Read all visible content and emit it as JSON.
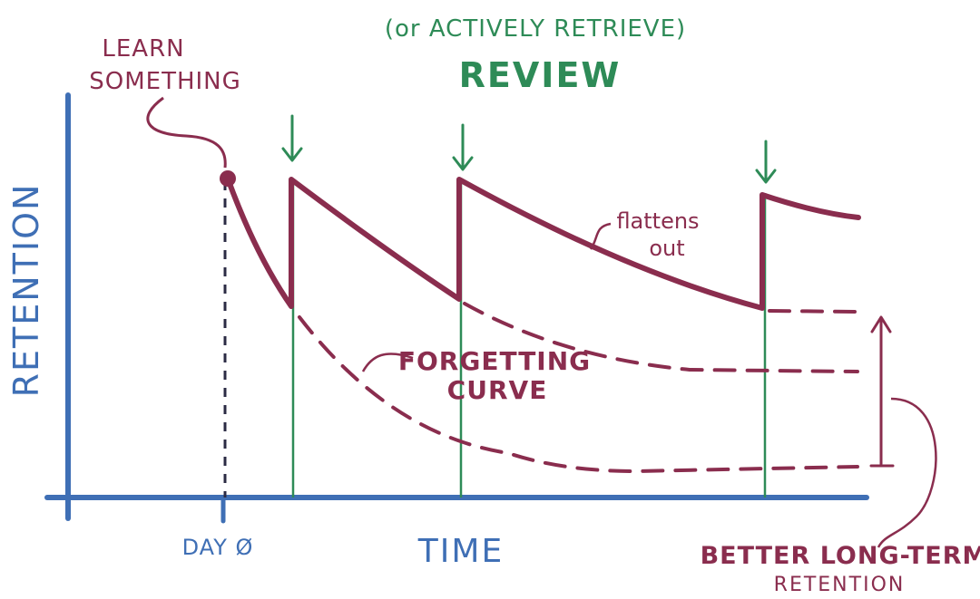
{
  "colors": {
    "axis": "#3f6fb5",
    "curve": "#8a2d4e",
    "review": "#2e8b57",
    "background": "#ffffff"
  },
  "title": {
    "subtitle": "(or ACTIVELY RETRIEVE)",
    "main": "REVIEW"
  },
  "axes": {
    "y_label": "RETENTION",
    "x_label": "TIME",
    "x_tick_day0": "DAY Ø"
  },
  "annotations": {
    "learn_line1": "LEARN",
    "learn_line2": "SOMETHING",
    "flattens_line1": "flattens",
    "flattens_line2": "out",
    "forgetting_line1": "FORGETTING",
    "forgetting_line2": "CURVE",
    "better_line1": "BETTER LONG-TERM",
    "better_line2": "RETENTION"
  }
}
